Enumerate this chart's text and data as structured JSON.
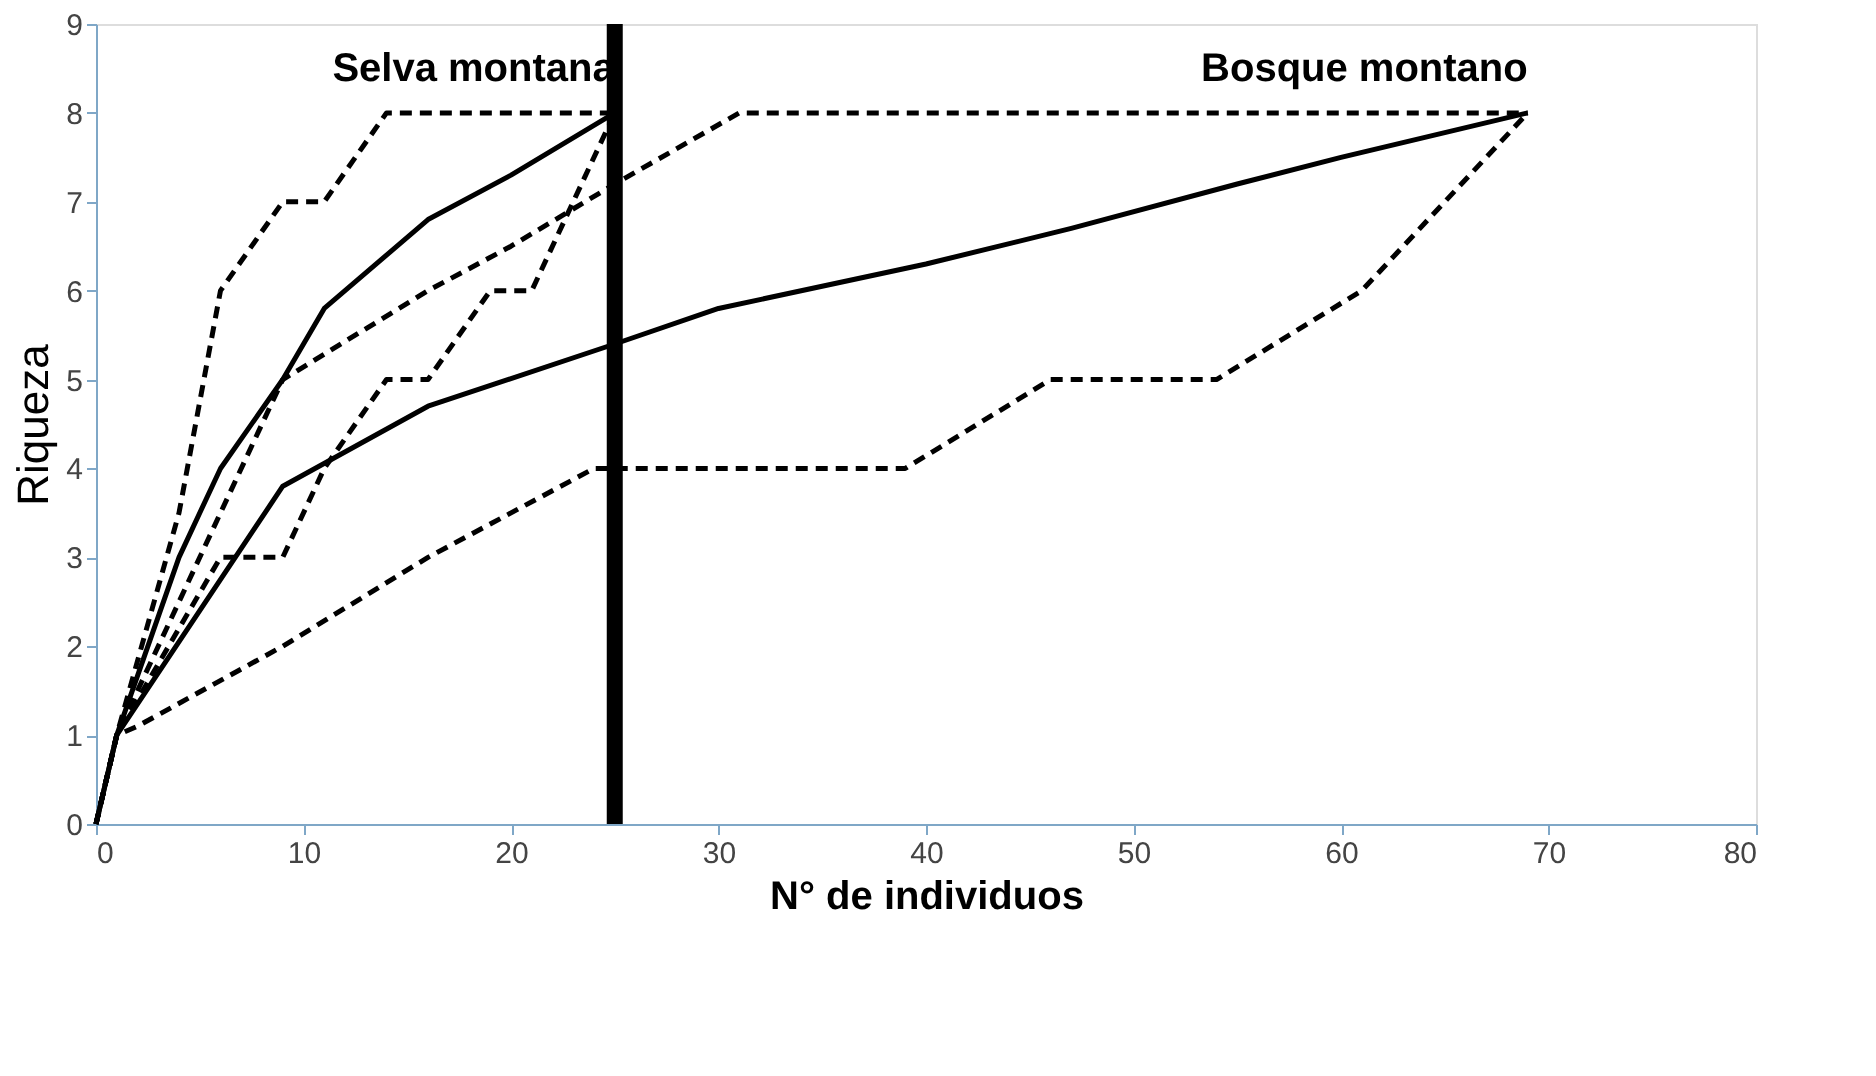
{
  "chart_data": {
    "type": "line",
    "xlabel": "N° de individuos",
    "ylabel": "Riqueza",
    "xlim": [
      0,
      80
    ],
    "xticks": [
      0,
      10,
      20,
      30,
      40,
      50,
      60,
      70,
      80
    ],
    "ylim": [
      0,
      9
    ],
    "yticks": [
      0,
      1,
      2,
      3,
      4,
      5,
      6,
      7,
      8,
      9
    ],
    "grid": false,
    "series": [
      {
        "color": "#000000",
        "line_style": "solid",
        "x": [
          0,
          1,
          4,
          6,
          9,
          11,
          14,
          16,
          20,
          25
        ],
        "values": [
          0,
          1,
          3,
          4,
          5,
          5.8,
          6.4,
          6.8,
          7.3,
          8
        ]
      },
      {
        "color": "#000000",
        "line_style": "dashed",
        "x": [
          0,
          1,
          4,
          6,
          9,
          11,
          14,
          25
        ],
        "values": [
          0,
          1,
          3.5,
          6,
          7,
          7,
          8,
          8
        ]
      },
      {
        "color": "#000000",
        "line_style": "dashed",
        "x": [
          0,
          1,
          6,
          9,
          11,
          14,
          16,
          19,
          21,
          25
        ],
        "values": [
          0,
          1,
          3,
          3,
          4,
          5,
          5,
          6,
          6,
          8
        ]
      },
      {
        "color": "#000000",
        "line_style": "solid",
        "x": [
          0,
          1,
          9,
          16,
          25,
          30,
          40,
          47,
          55,
          60,
          69
        ],
        "values": [
          0,
          1,
          3.8,
          4.7,
          5.4,
          5.8,
          6.3,
          6.7,
          7.2,
          7.5,
          8
        ]
      },
      {
        "color": "#000000",
        "line_style": "dashed",
        "x": [
          0,
          1,
          9,
          16,
          20,
          25,
          31,
          69
        ],
        "values": [
          0,
          1,
          5,
          6,
          6.5,
          7.2,
          8,
          8
        ]
      },
      {
        "color": "#000000",
        "line_style": "dashed",
        "x": [
          0,
          1,
          2,
          9,
          16,
          24,
          39,
          46,
          54,
          61,
          69
        ],
        "values": [
          0,
          1,
          1.1,
          2,
          3,
          4,
          4,
          5,
          5,
          6,
          8
        ]
      }
    ],
    "ref_lines": [
      {
        "axis": "x",
        "value": 25,
        "color": "#000000"
      }
    ],
    "annotations": [
      {
        "text": "Selva montana",
        "x": 25,
        "y": 8
      },
      {
        "text": "Bosque montano",
        "x": 69,
        "y": 8
      }
    ]
  }
}
